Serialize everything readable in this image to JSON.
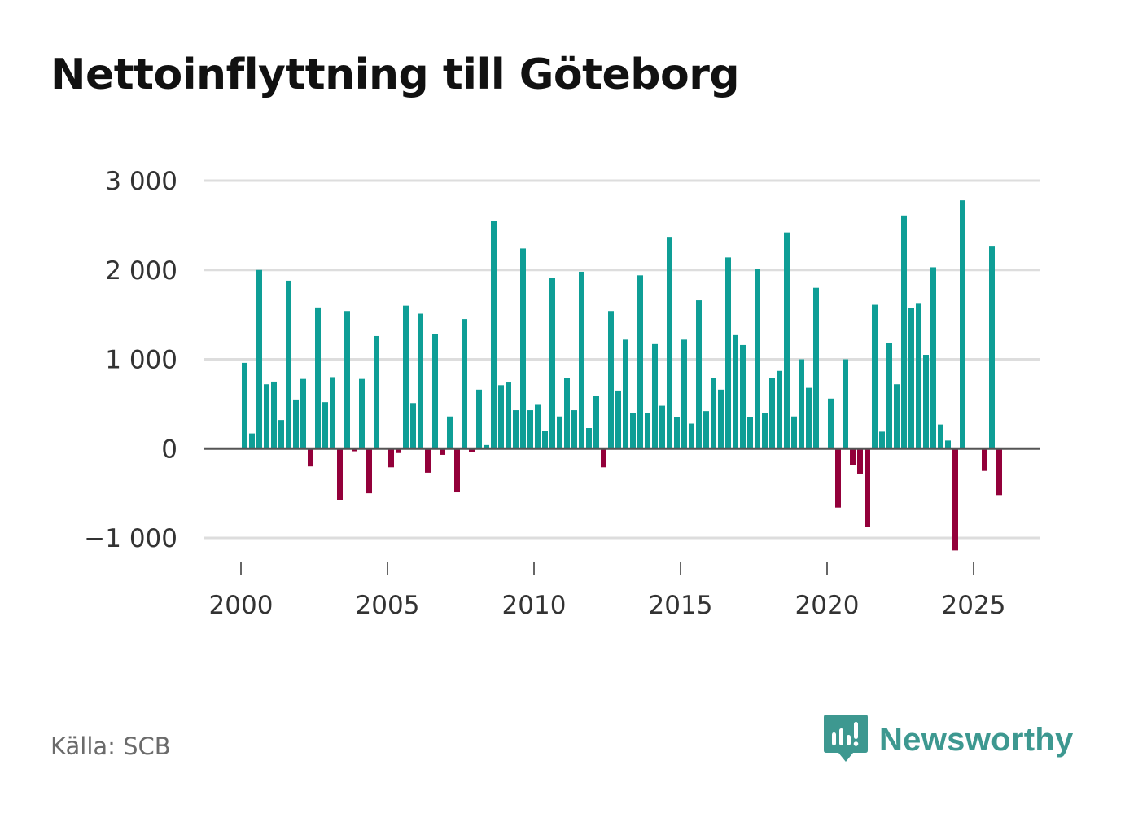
{
  "title": "Nettoinflyttning till Göteborg",
  "source": "Källa: SCB",
  "brand": "Newsworthy",
  "colors": {
    "positive": "#0e9e96",
    "negative": "#93003a",
    "grid": "#dddddd",
    "zero": "#555555",
    "brand": "#3d9890"
  },
  "chart_data": {
    "type": "bar",
    "title": "Nettoinflyttning till Göteborg",
    "xlabel": "",
    "ylabel": "",
    "frequency": "quarterly",
    "x_start": 2000.125,
    "x_step": 0.25,
    "xlim": [
      1999.4,
      2027.6
    ],
    "ylim": [
      -1300,
      3150
    ],
    "yticks": [
      3000,
      2000,
      1000,
      0,
      -1000
    ],
    "ytick_labels": [
      "3 000",
      "2 000",
      "1 000",
      "0",
      "−1 000"
    ],
    "xticks": [
      2000,
      2005,
      2010,
      2015,
      2020,
      2025
    ],
    "xtick_labels": [
      "2000",
      "2005",
      "2010",
      "2015",
      "2020",
      "2025"
    ],
    "values": [
      960,
      170,
      2000,
      720,
      750,
      320,
      1880,
      550,
      780,
      -200,
      1580,
      520,
      800,
      -580,
      1540,
      -30,
      780,
      -500,
      1260,
      0,
      -210,
      -50,
      1600,
      510,
      1510,
      -270,
      1280,
      -70,
      360,
      -490,
      1450,
      -40,
      660,
      40,
      2550,
      710,
      740,
      430,
      2240,
      430,
      490,
      200,
      1910,
      360,
      790,
      430,
      1980,
      230,
      590,
      -210,
      1540,
      650,
      1220,
      400,
      1940,
      400,
      1170,
      480,
      2370,
      350,
      1220,
      280,
      1660,
      420,
      790,
      660,
      2140,
      1270,
      1160,
      350,
      2010,
      400,
      790,
      870,
      2420,
      360,
      1000,
      680,
      1800,
      0,
      560,
      -660,
      1000,
      -180,
      -280,
      -880,
      1610,
      190,
      1180,
      720,
      2610,
      1570,
      1630,
      1050,
      2030,
      270,
      90,
      -1140,
      2780,
      0,
      0,
      -250,
      2270,
      -520
    ]
  }
}
